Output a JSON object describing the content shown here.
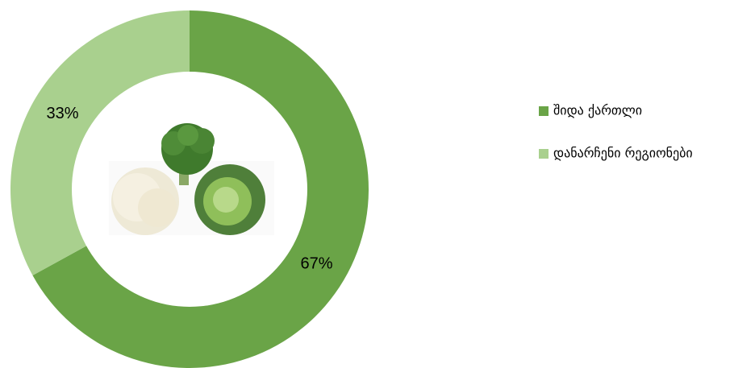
{
  "chart_data": {
    "type": "pie",
    "categories": [
      "შიდა ქართლი",
      "დანარჩენი რეგიონები"
    ],
    "values": [
      67,
      33
    ],
    "value_labels": [
      "67%",
      "33%"
    ],
    "colors": [
      "#6aa447",
      "#a9d08e"
    ],
    "legend": "right"
  }
}
